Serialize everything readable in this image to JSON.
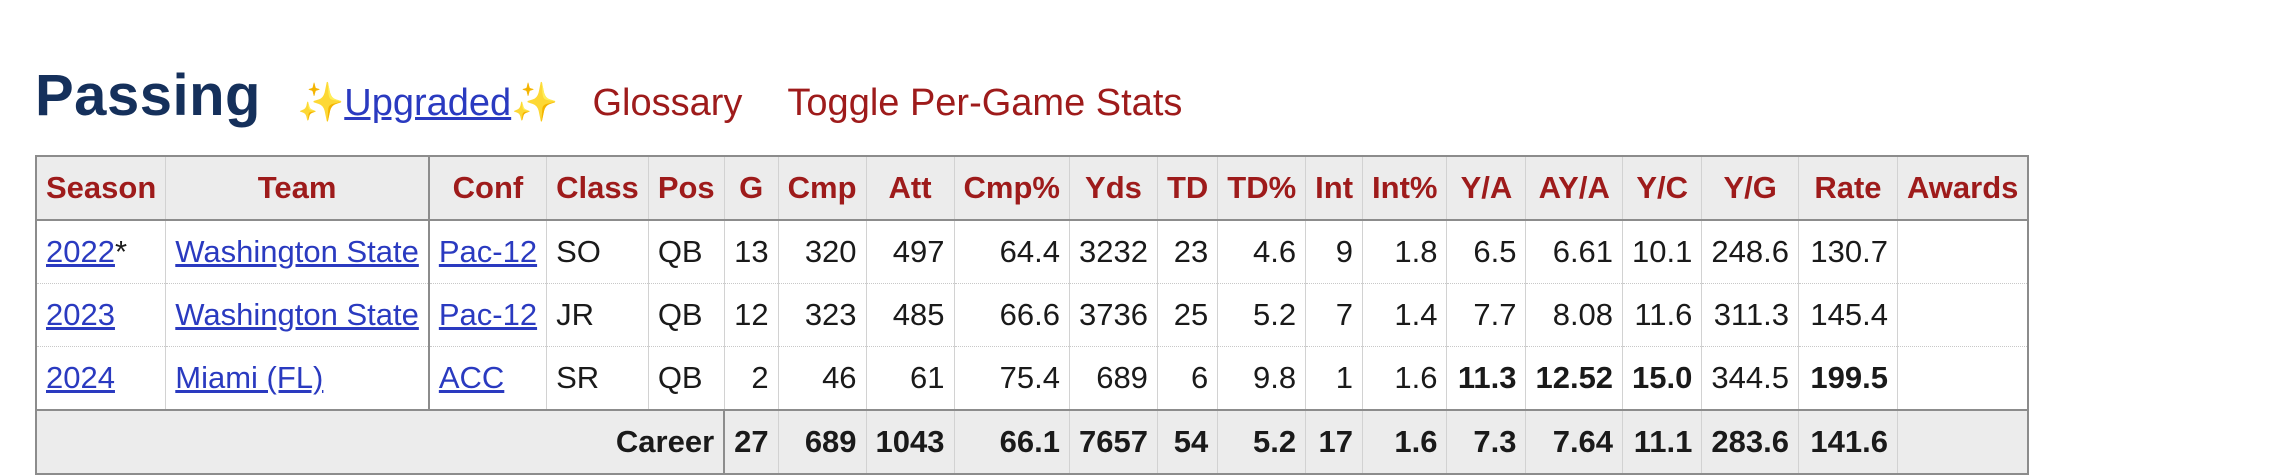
{
  "header": {
    "title": "Passing",
    "sparkle": "✨",
    "upgraded_label": "Upgraded",
    "glossary_label": "Glossary",
    "toggle_label": "Toggle Per-Game Stats"
  },
  "table": {
    "columns": [
      "Season",
      "Team",
      "Conf",
      "Class",
      "Pos",
      "G",
      "Cmp",
      "Att",
      "Cmp%",
      "Yds",
      "TD",
      "TD%",
      "Int",
      "Int%",
      "Y/A",
      "AY/A",
      "Y/C",
      "Y/G",
      "Rate",
      "Awards"
    ],
    "rows": [
      {
        "season": "2022",
        "season_mark": "*",
        "team": "Washington State",
        "conf": "Pac-12",
        "class": "SO",
        "pos": "QB",
        "g": "13",
        "cmp": "320",
        "att": "497",
        "cmp_pct": "64.4",
        "yds": "3232",
        "td": "23",
        "td_pct": "4.6",
        "int": "9",
        "int_pct": "1.8",
        "ya": "6.5",
        "aya": "6.61",
        "yc": "10.1",
        "yg": "248.6",
        "rate": "130.7",
        "awards": ""
      },
      {
        "season": "2023",
        "season_mark": "",
        "team": "Washington State",
        "conf": "Pac-12",
        "class": "JR",
        "pos": "QB",
        "g": "12",
        "cmp": "323",
        "att": "485",
        "cmp_pct": "66.6",
        "yds": "3736",
        "td": "25",
        "td_pct": "5.2",
        "int": "7",
        "int_pct": "1.4",
        "ya": "7.7",
        "aya": "8.08",
        "yc": "11.6",
        "yg": "311.3",
        "rate": "145.4",
        "awards": ""
      },
      {
        "season": "2024",
        "season_mark": "",
        "team": "Miami (FL)",
        "conf": "ACC",
        "class": "SR",
        "pos": "QB",
        "g": "2",
        "cmp": "46",
        "att": "61",
        "cmp_pct": "75.4",
        "yds": "689",
        "td": "6",
        "td_pct": "9.8",
        "int": "1",
        "int_pct": "1.6",
        "ya": "11.3",
        "aya": "12.52",
        "yc": "15.0",
        "yg": "344.5",
        "rate": "199.5",
        "awards": ""
      }
    ],
    "bold_cells": [
      "row2.ya",
      "row2.aya",
      "row2.yc",
      "row2.rate"
    ],
    "career": {
      "label": "Career",
      "g": "27",
      "cmp": "689",
      "att": "1043",
      "cmp_pct": "66.1",
      "yds": "7657",
      "td": "54",
      "td_pct": "5.2",
      "int": "17",
      "int_pct": "1.6",
      "ya": "7.3",
      "aya": "7.64",
      "yc": "11.1",
      "yg": "283.6",
      "rate": "141.6",
      "awards": ""
    }
  },
  "colors": {
    "title": "#15305b",
    "header_link": "#9e1b1b",
    "column_header": "#9e1b1b",
    "link": "#2a3ac0",
    "header_background": "#ececec"
  }
}
